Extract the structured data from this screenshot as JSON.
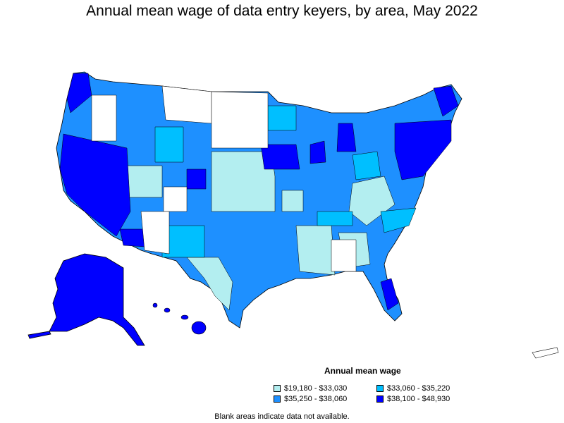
{
  "title": "Annual mean wage of data entry keyers, by area, May 2022",
  "legend": {
    "title": "Annual mean wage",
    "items": [
      {
        "label": "$19,180 - $33,030",
        "color": "#b3eef0"
      },
      {
        "label": "$33,060 - $35,220",
        "color": "#00bfff"
      },
      {
        "label": "$35,250 - $38,060",
        "color": "#1e90ff"
      },
      {
        "label": "$38,100 - $48,930",
        "color": "#0000ff"
      }
    ]
  },
  "note": "Blank areas indicate data not available.",
  "colors": {
    "none": "#ffffff",
    "border": "#000000"
  }
}
